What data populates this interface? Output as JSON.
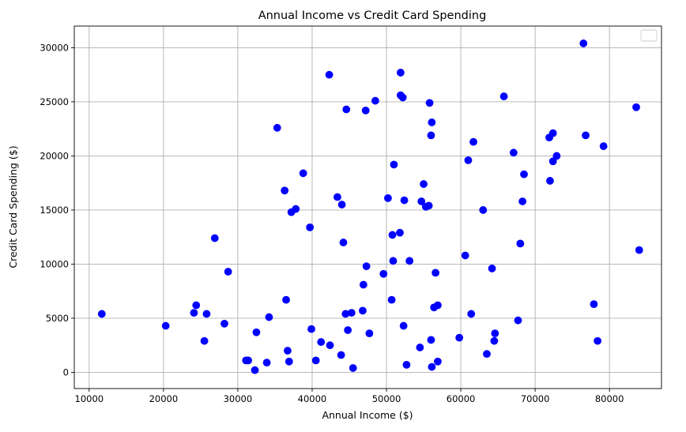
{
  "chart_data": {
    "type": "scatter",
    "title": "Annual Income vs Credit Card Spending",
    "xlabel": "Annual Income ($)",
    "ylabel": "Credit Card Spending ($)",
    "xlim": [
      8000,
      87000
    ],
    "ylim": [
      -1500,
      32000
    ],
    "x_ticks": [
      10000,
      20000,
      30000,
      40000,
      50000,
      60000,
      70000,
      80000
    ],
    "y_ticks": [
      0,
      5000,
      10000,
      15000,
      20000,
      25000,
      30000
    ],
    "x_tick_labels": [
      "10000",
      "20000",
      "30000",
      "40000",
      "50000",
      "60000",
      "70000",
      "80000"
    ],
    "y_tick_labels": [
      "0",
      "5000",
      "10000",
      "15000",
      "20000",
      "25000",
      "30000"
    ],
    "grid": true,
    "legend": {
      "placement": "top-right",
      "entries": []
    },
    "series": [
      {
        "color": "#0000ff",
        "marker": "circle",
        "points": [
          [
            11700,
            5400
          ],
          [
            20300,
            4300
          ],
          [
            24100,
            5500
          ],
          [
            24400,
            6200
          ],
          [
            25500,
            2900
          ],
          [
            25800,
            5400
          ],
          [
            26900,
            12400
          ],
          [
            28200,
            4500
          ],
          [
            28700,
            9300
          ],
          [
            31100,
            1100
          ],
          [
            31400,
            1100
          ],
          [
            32300,
            200
          ],
          [
            32500,
            3700
          ],
          [
            33900,
            900
          ],
          [
            34200,
            5100
          ],
          [
            35300,
            22600
          ],
          [
            36300,
            16800
          ],
          [
            36500,
            6700
          ],
          [
            36700,
            2000
          ],
          [
            36900,
            1000
          ],
          [
            37200,
            14800
          ],
          [
            37800,
            15100
          ],
          [
            38800,
            18400
          ],
          [
            39700,
            13400
          ],
          [
            39900,
            4000
          ],
          [
            40500,
            1100
          ],
          [
            41200,
            2800
          ],
          [
            42300,
            27500
          ],
          [
            42400,
            2500
          ],
          [
            43400,
            16200
          ],
          [
            43900,
            1600
          ],
          [
            44000,
            15500
          ],
          [
            44200,
            12000
          ],
          [
            44500,
            5400
          ],
          [
            44600,
            24300
          ],
          [
            44800,
            3900
          ],
          [
            45300,
            5500
          ],
          [
            45500,
            400
          ],
          [
            46800,
            5700
          ],
          [
            46900,
            8100
          ],
          [
            47200,
            24200
          ],
          [
            47300,
            9800
          ],
          [
            47700,
            3600
          ],
          [
            48500,
            25100
          ],
          [
            49600,
            9100
          ],
          [
            50200,
            16100
          ],
          [
            50700,
            6700
          ],
          [
            50800,
            12700
          ],
          [
            50900,
            10300
          ],
          [
            51000,
            19200
          ],
          [
            51800,
            12900
          ],
          [
            51900,
            27700
          ],
          [
            51900,
            25600
          ],
          [
            52200,
            25400
          ],
          [
            52300,
            4300
          ],
          [
            52400,
            15900
          ],
          [
            52700,
            700
          ],
          [
            53100,
            10300
          ],
          [
            54500,
            2300
          ],
          [
            54700,
            15800
          ],
          [
            55000,
            17400
          ],
          [
            55300,
            15300
          ],
          [
            55700,
            15400
          ],
          [
            55800,
            24900
          ],
          [
            56000,
            3000
          ],
          [
            56000,
            21900
          ],
          [
            56100,
            23100
          ],
          [
            56100,
            500
          ],
          [
            56400,
            6000
          ],
          [
            56600,
            9200
          ],
          [
            56900,
            6200
          ],
          [
            56900,
            1000
          ],
          [
            59800,
            3200
          ],
          [
            60600,
            10800
          ],
          [
            61000,
            19600
          ],
          [
            61400,
            5400
          ],
          [
            61700,
            21300
          ],
          [
            63000,
            15000
          ],
          [
            63500,
            1700
          ],
          [
            64200,
            9600
          ],
          [
            64500,
            2900
          ],
          [
            64600,
            3600
          ],
          [
            65800,
            25500
          ],
          [
            67100,
            20300
          ],
          [
            67700,
            4800
          ],
          [
            68000,
            11900
          ],
          [
            68300,
            15800
          ],
          [
            68500,
            18300
          ],
          [
            71900,
            21700
          ],
          [
            72000,
            17700
          ],
          [
            72400,
            19500
          ],
          [
            72400,
            22100
          ],
          [
            72900,
            20000
          ],
          [
            76500,
            30400
          ],
          [
            76800,
            21900
          ],
          [
            77900,
            6300
          ],
          [
            78400,
            2900
          ],
          [
            79200,
            20900
          ],
          [
            83600,
            24500
          ],
          [
            84000,
            11300
          ]
        ]
      }
    ]
  }
}
